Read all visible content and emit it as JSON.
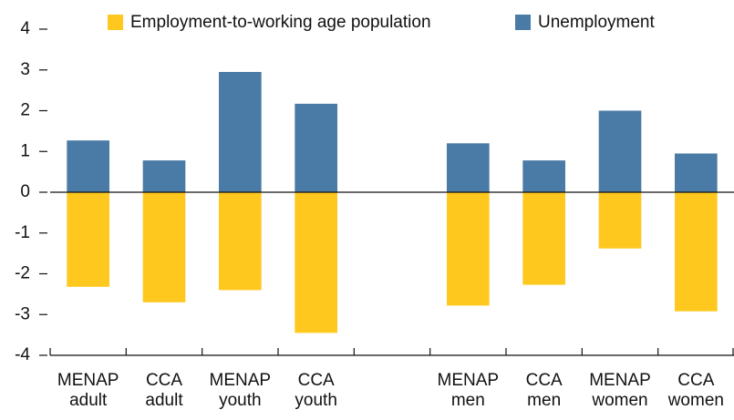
{
  "chart_data": {
    "type": "bar",
    "categories": [
      "MENAP adult",
      "CCA adult",
      "MENAP youth",
      "CCA youth",
      null,
      "MENAP men",
      "CCA men",
      "MENAP women",
      "CCA women"
    ],
    "series": [
      {
        "name": "Employment-to-working age population",
        "color": "#ffc81e",
        "values": [
          -2.32,
          -2.7,
          -2.4,
          -3.45,
          null,
          -2.78,
          -2.27,
          -1.38,
          -2.92
        ]
      },
      {
        "name": "Unemployment",
        "color": "#4a7ba6",
        "values": [
          1.27,
          0.78,
          2.95,
          2.17,
          null,
          1.2,
          0.78,
          2.0,
          0.95
        ]
      }
    ],
    "ylim": [
      -4,
      4
    ],
    "yticks": [
      -4,
      -3,
      -2,
      -1,
      0,
      1,
      2,
      3,
      4
    ],
    "legend": "top"
  }
}
